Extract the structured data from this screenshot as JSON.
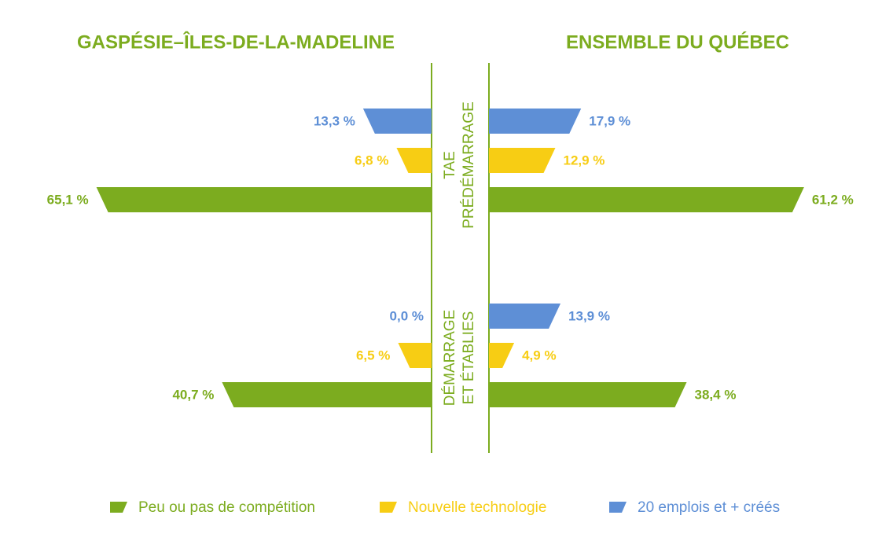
{
  "chart_data": {
    "type": "bar",
    "orientation": "horizontal",
    "layout": "butterfly",
    "categories": [
      [
        "TAE",
        "PRÉDÉMARRAGE"
      ],
      [
        "DÉMARRAGE",
        "ET ÉTABLIES"
      ]
    ],
    "series": [
      {
        "name": "Peu ou pas de compétition",
        "color": "#7cac1f"
      },
      {
        "name": "Nouvelle technologie",
        "color": "#f7cd14"
      },
      {
        "name": "20 emplois et + créés",
        "color": "#5e8fd6"
      }
    ],
    "panels": [
      {
        "title": "GASPÉSIE–ÎLES-DE-LA-MADELINE",
        "side": "left",
        "series": [
          {
            "values": [
              65.1,
              40.7
            ],
            "value_labels": [
              "65,1 %",
              "40,7 %"
            ]
          },
          {
            "values": [
              6.8,
              6.5
            ],
            "value_labels": [
              "6,8 %",
              "6,5 %"
            ]
          },
          {
            "values": [
              13.3,
              0.0
            ],
            "value_labels": [
              "13,3 %",
              "0,0 %"
            ]
          }
        ]
      },
      {
        "title": "ENSEMBLE DU QUÉBEC",
        "side": "right",
        "series": [
          {
            "values": [
              61.2,
              38.4
            ],
            "value_labels": [
              "61,2 %",
              "38,4 %"
            ]
          },
          {
            "values": [
              12.9,
              4.9
            ],
            "value_labels": [
              "12,9 %",
              "4,9 %"
            ]
          },
          {
            "values": [
              17.9,
              13.9
            ],
            "value_labels": [
              "17,9 %",
              "13,9 %"
            ]
          }
        ]
      }
    ],
    "legend": "bottom"
  }
}
